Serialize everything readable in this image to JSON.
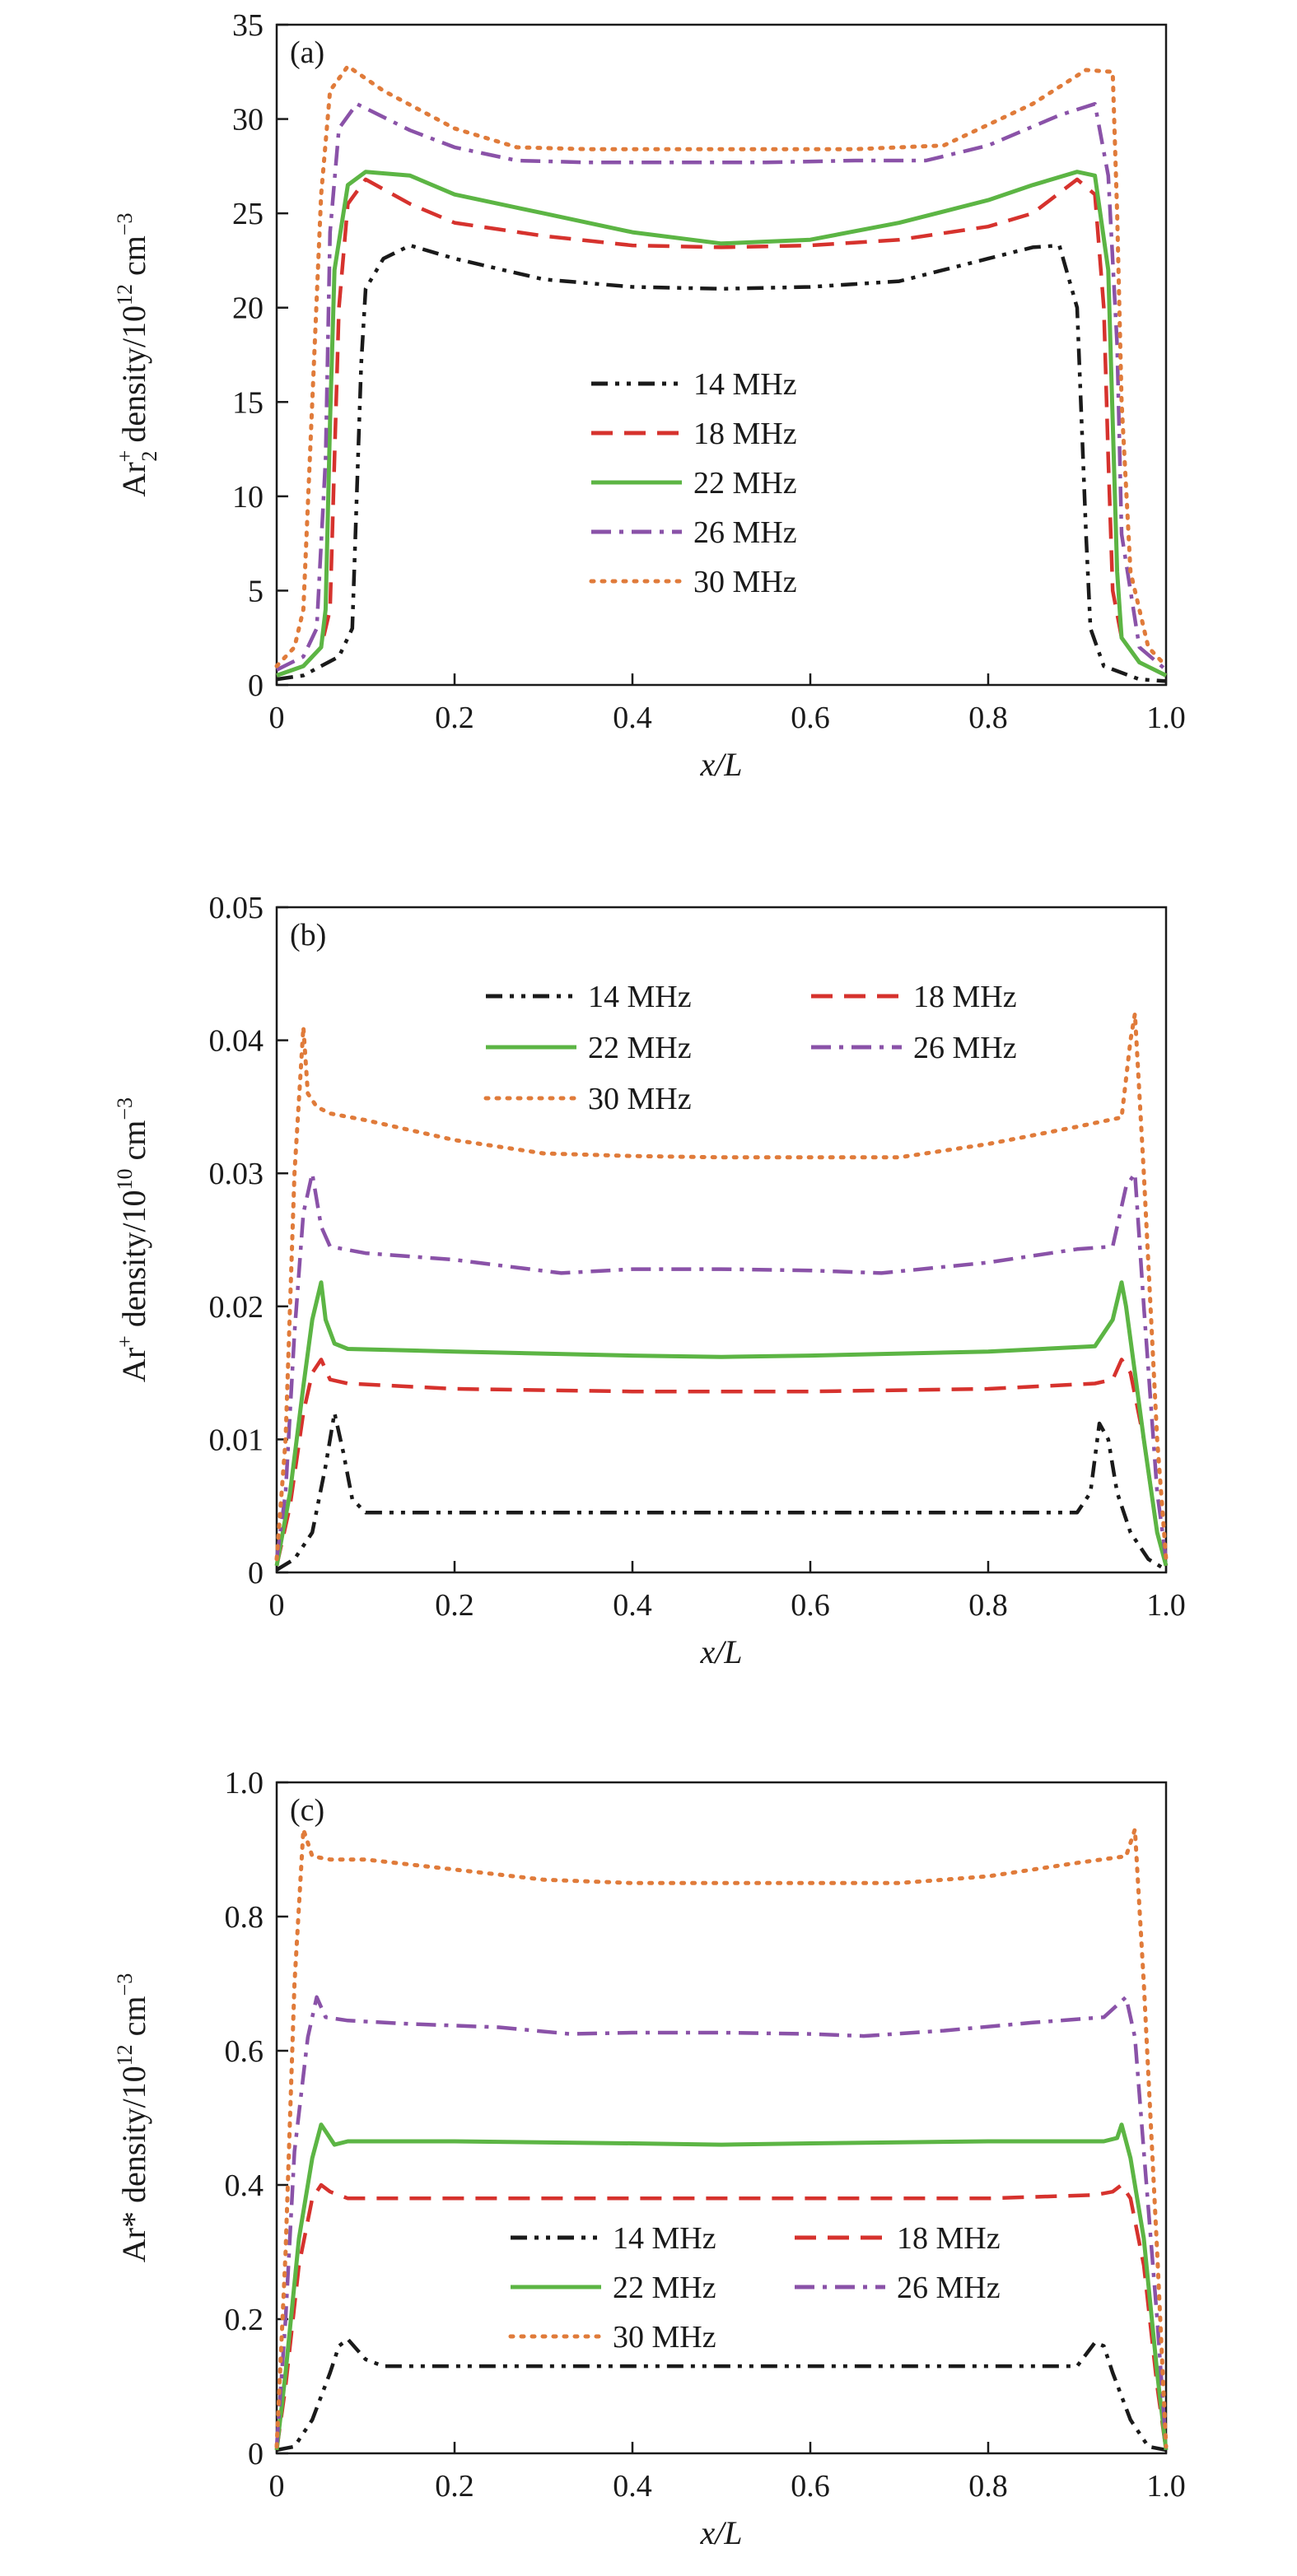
{
  "chart_data": [
    {
      "type": "line",
      "panel_label": "(a)",
      "xlabel": "x/L",
      "ylabel": "Ar2+ density/10^12 cm^-3",
      "ylabel_parts": {
        "base": "Ar",
        "sub": "2",
        "sup": "+",
        "mid": " density/10",
        "exp": "12",
        "unit": " cm",
        "unit_exp": "−3"
      },
      "xlim": [
        0,
        1.0
      ],
      "ylim": [
        0,
        35
      ],
      "xticks": [
        "0",
        "0.2",
        "0.4",
        "0.6",
        "0.8",
        "1.0"
      ],
      "yticks": [
        "0",
        "5",
        "10",
        "15",
        "20",
        "25",
        "30",
        "35"
      ],
      "legend_position": "center",
      "legend_columns": 1,
      "series": [
        {
          "name": "14 MHz",
          "color": "#1a1a1a",
          "style": "dashdotdot",
          "x": [
            0,
            0.03,
            0.07,
            0.085,
            0.09,
            0.095,
            0.1,
            0.12,
            0.15,
            0.2,
            0.3,
            0.4,
            0.5,
            0.6,
            0.7,
            0.8,
            0.85,
            0.88,
            0.9,
            0.905,
            0.91,
            0.915,
            0.93,
            0.97,
            1.0
          ],
          "y": [
            0.3,
            0.5,
            1.5,
            3.0,
            10,
            17,
            21,
            22.6,
            23.3,
            22.6,
            21.5,
            21.1,
            21.0,
            21.1,
            21.4,
            22.6,
            23.2,
            23.3,
            20,
            14,
            8,
            3.0,
            1.0,
            0.3,
            0.2
          ]
        },
        {
          "name": "18 MHz",
          "color": "#d6322d",
          "style": "dashed",
          "x": [
            0,
            0.03,
            0.05,
            0.06,
            0.065,
            0.07,
            0.08,
            0.1,
            0.15,
            0.2,
            0.3,
            0.4,
            0.5,
            0.6,
            0.7,
            0.8,
            0.85,
            0.9,
            0.92,
            0.93,
            0.935,
            0.94,
            0.95,
            0.97,
            1.0
          ],
          "y": [
            0.5,
            1.0,
            2.0,
            4.0,
            12,
            20,
            25.5,
            26.8,
            25.5,
            24.5,
            23.8,
            23.3,
            23.2,
            23.3,
            23.6,
            24.3,
            25.0,
            26.8,
            26,
            20,
            12,
            5,
            2.5,
            1.2,
            0.5
          ]
        },
        {
          "name": "22 MHz",
          "color": "#5cb544",
          "style": "solid",
          "x": [
            0,
            0.03,
            0.05,
            0.055,
            0.06,
            0.065,
            0.08,
            0.1,
            0.15,
            0.2,
            0.3,
            0.4,
            0.5,
            0.6,
            0.7,
            0.8,
            0.85,
            0.9,
            0.92,
            0.935,
            0.94,
            0.945,
            0.95,
            0.97,
            1.0
          ],
          "y": [
            0.5,
            1.0,
            2.0,
            4.0,
            14,
            22,
            26.5,
            27.2,
            27.0,
            26.0,
            25.0,
            24.0,
            23.4,
            23.6,
            24.5,
            25.7,
            26.5,
            27.2,
            27.0,
            22,
            14,
            6,
            2.5,
            1.2,
            0.5
          ]
        },
        {
          "name": "26 MHz",
          "color": "#8a52a8",
          "style": "dashdot",
          "x": [
            0,
            0.03,
            0.045,
            0.055,
            0.06,
            0.07,
            0.09,
            0.15,
            0.2,
            0.27,
            0.35,
            0.45,
            0.55,
            0.65,
            0.73,
            0.8,
            0.88,
            0.92,
            0.935,
            0.945,
            0.95,
            0.97,
            1.0
          ],
          "y": [
            0.8,
            1.5,
            3.0,
            12,
            24,
            29.5,
            30.8,
            29.4,
            28.5,
            27.8,
            27.7,
            27.7,
            27.7,
            27.8,
            27.8,
            28.6,
            30.2,
            30.8,
            27,
            18,
            8,
            2.0,
            0.8
          ]
        },
        {
          "name": "30 MHz",
          "color": "#e07b3a",
          "style": "dotted",
          "x": [
            0,
            0.02,
            0.03,
            0.04,
            0.05,
            0.06,
            0.08,
            0.12,
            0.2,
            0.27,
            0.35,
            0.45,
            0.55,
            0.65,
            0.75,
            0.85,
            0.91,
            0.94,
            0.945,
            0.95,
            0.96,
            0.98,
            1.0
          ],
          "y": [
            1.0,
            2.0,
            4.0,
            15,
            26,
            31.5,
            32.8,
            31.5,
            29.5,
            28.5,
            28.4,
            28.4,
            28.4,
            28.4,
            28.6,
            30.8,
            32.6,
            32.5,
            25,
            15,
            6,
            2.0,
            1.0
          ]
        }
      ]
    },
    {
      "type": "line",
      "panel_label": "(b)",
      "xlabel": "x/L",
      "ylabel": "Ar+ density/10^10 cm^-3",
      "ylabel_parts": {
        "base": "Ar",
        "sub": "",
        "sup": "+",
        "mid": " density/10",
        "exp": "10",
        "unit": " cm",
        "unit_exp": "−3"
      },
      "xlim": [
        0,
        1.0
      ],
      "ylim": [
        0,
        0.05
      ],
      "xticks": [
        "0",
        "0.2",
        "0.4",
        "0.6",
        "0.8",
        "1.0"
      ],
      "yticks": [
        "0",
        "0.01",
        "0.02",
        "0.03",
        "0.04",
        "0.05"
      ],
      "legend_position": "top",
      "legend_columns": 2,
      "series": [
        {
          "name": "14 MHz",
          "color": "#1a1a1a",
          "style": "dashdotdot",
          "x": [
            0,
            0.02,
            0.04,
            0.055,
            0.065,
            0.075,
            0.085,
            0.1,
            0.2,
            0.4,
            0.6,
            0.8,
            0.9,
            0.915,
            0.925,
            0.935,
            0.945,
            0.96,
            0.98,
            1.0
          ],
          "y": [
            0.0002,
            0.001,
            0.003,
            0.008,
            0.012,
            0.009,
            0.0055,
            0.0045,
            0.0045,
            0.0045,
            0.0045,
            0.0045,
            0.0045,
            0.006,
            0.0112,
            0.01,
            0.006,
            0.003,
            0.001,
            0.0002
          ]
        },
        {
          "name": "18 MHz",
          "color": "#d6322d",
          "style": "dashed",
          "x": [
            0,
            0.015,
            0.03,
            0.04,
            0.05,
            0.06,
            0.08,
            0.2,
            0.4,
            0.6,
            0.8,
            0.92,
            0.94,
            0.95,
            0.96,
            0.975,
            0.99,
            1.0
          ],
          "y": [
            0.0005,
            0.005,
            0.012,
            0.015,
            0.016,
            0.0145,
            0.0142,
            0.0138,
            0.0136,
            0.0136,
            0.0138,
            0.0142,
            0.0145,
            0.016,
            0.015,
            0.01,
            0.003,
            0.0005
          ]
        },
        {
          "name": "22 MHz",
          "color": "#5cb544",
          "style": "solid",
          "x": [
            0,
            0.015,
            0.03,
            0.04,
            0.05,
            0.055,
            0.065,
            0.08,
            0.2,
            0.4,
            0.5,
            0.6,
            0.8,
            0.92,
            0.94,
            0.95,
            0.955,
            0.965,
            0.975,
            0.99,
            1.0
          ],
          "y": [
            0.0005,
            0.006,
            0.014,
            0.019,
            0.0218,
            0.019,
            0.0172,
            0.0168,
            0.0166,
            0.0163,
            0.0162,
            0.0163,
            0.0166,
            0.017,
            0.019,
            0.0218,
            0.02,
            0.015,
            0.01,
            0.003,
            0.0005
          ]
        },
        {
          "name": "26 MHz",
          "color": "#8a52a8",
          "style": "dashdot",
          "x": [
            0,
            0.01,
            0.02,
            0.03,
            0.04,
            0.05,
            0.06,
            0.1,
            0.2,
            0.32,
            0.4,
            0.5,
            0.6,
            0.68,
            0.8,
            0.9,
            0.94,
            0.955,
            0.965,
            0.975,
            0.99,
            1.0
          ],
          "y": [
            0.001,
            0.006,
            0.018,
            0.027,
            0.03,
            0.026,
            0.0245,
            0.024,
            0.0235,
            0.0225,
            0.0228,
            0.0228,
            0.0227,
            0.0225,
            0.0233,
            0.0243,
            0.0245,
            0.029,
            0.03,
            0.02,
            0.006,
            0.001
          ]
        },
        {
          "name": "30 MHz",
          "color": "#e07b3a",
          "style": "dotted",
          "x": [
            0,
            0.01,
            0.02,
            0.03,
            0.035,
            0.045,
            0.06,
            0.1,
            0.2,
            0.3,
            0.4,
            0.5,
            0.6,
            0.7,
            0.8,
            0.9,
            0.95,
            0.96,
            0.965,
            0.975,
            0.99,
            1.0
          ],
          "y": [
            0.001,
            0.01,
            0.03,
            0.041,
            0.036,
            0.035,
            0.0345,
            0.034,
            0.0325,
            0.0315,
            0.0313,
            0.0312,
            0.0312,
            0.0312,
            0.0322,
            0.0335,
            0.0342,
            0.04,
            0.042,
            0.03,
            0.01,
            0.001
          ]
        }
      ]
    },
    {
      "type": "line",
      "panel_label": "(c)",
      "xlabel": "x/L",
      "ylabel": "Ar* density/10^12 cm^-3",
      "ylabel_parts": {
        "base": "Ar*",
        "sub": "",
        "sup": "",
        "mid": " density/10",
        "exp": "12",
        "unit": " cm",
        "unit_exp": "−3"
      },
      "xlim": [
        0,
        1.0
      ],
      "ylim": [
        0,
        1.0
      ],
      "xticks": [
        "0",
        "0.2",
        "0.4",
        "0.6",
        "0.8",
        "1.0"
      ],
      "yticks": [
        "0",
        "0.2",
        "0.4",
        "0.6",
        "0.8",
        "1.0"
      ],
      "legend_position": "bottom",
      "legend_columns": 2,
      "series": [
        {
          "name": "14 MHz",
          "color": "#1a1a1a",
          "style": "dashdotdot",
          "x": [
            0,
            0.02,
            0.04,
            0.06,
            0.07,
            0.08,
            0.1,
            0.12,
            0.2,
            0.4,
            0.6,
            0.8,
            0.9,
            0.92,
            0.93,
            0.94,
            0.96,
            0.98,
            1.0
          ],
          "y": [
            0.005,
            0.01,
            0.05,
            0.12,
            0.16,
            0.17,
            0.14,
            0.13,
            0.13,
            0.13,
            0.13,
            0.13,
            0.13,
            0.165,
            0.16,
            0.12,
            0.05,
            0.01,
            0.005
          ]
        },
        {
          "name": "18 MHz",
          "color": "#d6322d",
          "style": "dashed",
          "x": [
            0,
            0.01,
            0.025,
            0.04,
            0.05,
            0.06,
            0.08,
            0.2,
            0.4,
            0.6,
            0.8,
            0.92,
            0.94,
            0.95,
            0.96,
            0.975,
            0.99,
            1.0
          ],
          "y": [
            0.005,
            0.1,
            0.28,
            0.38,
            0.4,
            0.39,
            0.38,
            0.38,
            0.38,
            0.38,
            0.38,
            0.385,
            0.39,
            0.4,
            0.38,
            0.28,
            0.1,
            0.005
          ]
        },
        {
          "name": "22 MHz",
          "color": "#5cb544",
          "style": "solid",
          "x": [
            0,
            0.01,
            0.025,
            0.04,
            0.05,
            0.055,
            0.065,
            0.08,
            0.2,
            0.4,
            0.5,
            0.6,
            0.8,
            0.93,
            0.945,
            0.95,
            0.96,
            0.975,
            0.99,
            1.0
          ],
          "y": [
            0.005,
            0.12,
            0.32,
            0.44,
            0.49,
            0.48,
            0.46,
            0.465,
            0.465,
            0.462,
            0.46,
            0.462,
            0.465,
            0.465,
            0.47,
            0.49,
            0.44,
            0.32,
            0.12,
            0.005
          ]
        },
        {
          "name": "26 MHz",
          "color": "#8a52a8",
          "style": "dashdot",
          "x": [
            0,
            0.01,
            0.02,
            0.035,
            0.045,
            0.055,
            0.08,
            0.15,
            0.25,
            0.33,
            0.4,
            0.5,
            0.6,
            0.66,
            0.75,
            0.85,
            0.93,
            0.955,
            0.965,
            0.975,
            0.99,
            1.0
          ],
          "y": [
            0.01,
            0.2,
            0.45,
            0.62,
            0.68,
            0.65,
            0.645,
            0.64,
            0.635,
            0.625,
            0.627,
            0.627,
            0.625,
            0.622,
            0.63,
            0.642,
            0.65,
            0.68,
            0.62,
            0.45,
            0.2,
            0.01
          ]
        },
        {
          "name": "30 MHz",
          "color": "#e07b3a",
          "style": "dotted",
          "x": [
            0,
            0.01,
            0.02,
            0.03,
            0.04,
            0.06,
            0.1,
            0.2,
            0.3,
            0.4,
            0.5,
            0.6,
            0.7,
            0.8,
            0.9,
            0.955,
            0.965,
            0.975,
            0.99,
            1.0
          ],
          "y": [
            0.01,
            0.3,
            0.7,
            0.93,
            0.89,
            0.885,
            0.885,
            0.87,
            0.855,
            0.85,
            0.85,
            0.85,
            0.85,
            0.86,
            0.88,
            0.89,
            0.93,
            0.7,
            0.3,
            0.01
          ]
        }
      ]
    }
  ]
}
